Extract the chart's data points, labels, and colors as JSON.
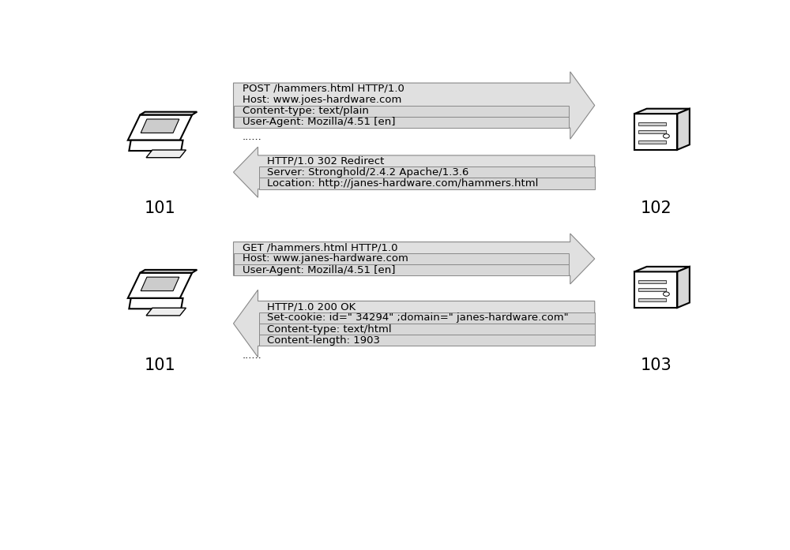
{
  "bg_color": "#ffffff",
  "fig_width": 10.0,
  "fig_height": 6.97,
  "top_section": {
    "request_above": [
      "POST /hammers.html HTTP/1.0",
      "Host: www.joes-hardware.com"
    ],
    "request_boxed": [
      "Content-type: text/plain",
      "User-Agent: Mozilla/4.51 [en]"
    ],
    "request_dots": "......",
    "response_above": [
      "HTTP/1.0 302 Redirect"
    ],
    "response_boxed": [
      "Server: Stronghold/2.4.2 Apache/1.3.6",
      "Location: http://janes-hardware.com/hammers.html"
    ],
    "left_label": "101",
    "right_label": "102"
  },
  "bottom_section": {
    "request_above": [
      "GET /hammers.html HTTP/1.0"
    ],
    "request_boxed": [
      "Host: www.janes-hardware.com",
      "User-Agent: Mozilla/4.51 [en]"
    ],
    "response_above": [
      "HTTP/1.0 200 OK"
    ],
    "response_boxed": [
      "Set-cookie: id=\" 34294\" ;domain=\" janes-hardware.com\"",
      "Content-type: text/html",
      "Content-length: 1903"
    ],
    "response_dots": "......",
    "left_label": "101",
    "right_label": "103"
  },
  "arrow_fill": "#e0e0e0",
  "arrow_edge": "#888888",
  "box_fill": "#d8d8d8",
  "box_edge": "#888888",
  "text_color": "#000000",
  "font_size": 9.5,
  "label_font_size": 15
}
